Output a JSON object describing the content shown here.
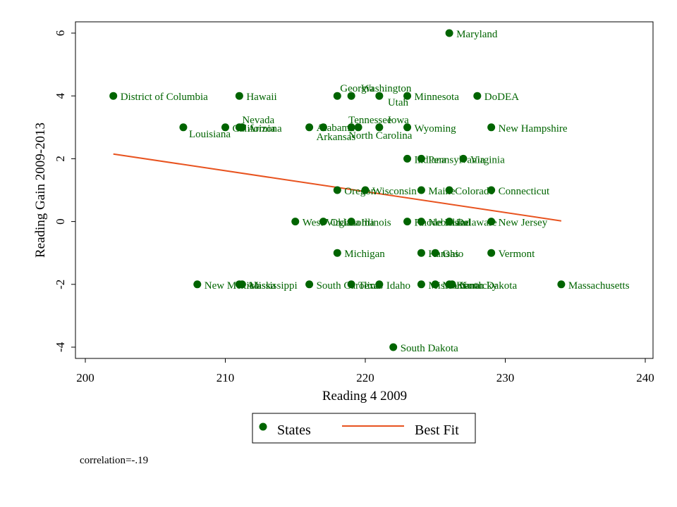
{
  "colors": {
    "point": "#006400",
    "fit": "#e8531f",
    "frame": "#000000"
  },
  "chart_data": {
    "type": "scatter",
    "xlabel": "Reading 4 2009",
    "ylabel": "Reading Gain 2009-2013",
    "xlim": [
      200,
      240
    ],
    "ylim": [
      -4,
      6
    ],
    "xticks": [
      "200",
      "210",
      "220",
      "230",
      "240"
    ],
    "yticks": [
      "-4",
      "-2",
      "0",
      "2",
      "4",
      "6"
    ],
    "legend": {
      "placement": "bottom",
      "points_label": "States",
      "fit_label": "Best Fit"
    },
    "note": "correlation=-.19",
    "fit_line": {
      "x": [
        202,
        234
      ],
      "y": [
        2.15,
        0.02
      ]
    },
    "points": [
      {
        "label": "Maryland",
        "x": 226,
        "y": 6
      },
      {
        "label": "District of Columbia",
        "x": 202,
        "y": 4
      },
      {
        "label": "Hawaii",
        "x": 211,
        "y": 4
      },
      {
        "label": "Georgia",
        "x": 218,
        "y": 4
      },
      {
        "label": "Washington",
        "x": 219,
        "y": 4
      },
      {
        "label": "Utah",
        "x": 221,
        "y": 4
      },
      {
        "label": "Minnesota",
        "x": 223,
        "y": 4
      },
      {
        "label": "DoDEA",
        "x": 228,
        "y": 4
      },
      {
        "label": "Louisiana",
        "x": 207,
        "y": 3
      },
      {
        "label": "California",
        "x": 210,
        "y": 3
      },
      {
        "label": "Nevada",
        "x": 211,
        "y": 3
      },
      {
        "label": "Arizona",
        "x": 211.2,
        "y": 3
      },
      {
        "label": "Alabama",
        "x": 216,
        "y": 3
      },
      {
        "label": "Arkansas",
        "x": 217,
        "y": 3
      },
      {
        "label": "Tennessee",
        "x": 219,
        "y": 3
      },
      {
        "label": "Iowa",
        "x": 221,
        "y": 3
      },
      {
        "label": "North Carolina",
        "x": 219.5,
        "y": 3
      },
      {
        "label": "Wyoming",
        "x": 223,
        "y": 3
      },
      {
        "label": "New Hampshire",
        "x": 229,
        "y": 3
      },
      {
        "label": "Indiana",
        "x": 223,
        "y": 2
      },
      {
        "label": "Pennsylvania",
        "x": 224,
        "y": 2
      },
      {
        "label": "Virginia",
        "x": 227,
        "y": 2
      },
      {
        "label": "Oregon",
        "x": 218,
        "y": 1
      },
      {
        "label": "Wisconsin",
        "x": 220,
        "y": 1
      },
      {
        "label": "Maine",
        "x": 224,
        "y": 1
      },
      {
        "label": "Colorado",
        "x": 226,
        "y": 1
      },
      {
        "label": "Connecticut",
        "x": 229,
        "y": 1
      },
      {
        "label": "West Virginia",
        "x": 215,
        "y": 0
      },
      {
        "label": "Oklahoma",
        "x": 217,
        "y": 0
      },
      {
        "label": "Illinois",
        "x": 219,
        "y": 0
      },
      {
        "label": "Rhode Island",
        "x": 223,
        "y": 0
      },
      {
        "label": "Nebraska",
        "x": 224,
        "y": 0
      },
      {
        "label": "Delaware",
        "x": 226,
        "y": 0
      },
      {
        "label": "New Jersey",
        "x": 229,
        "y": 0
      },
      {
        "label": "Michigan",
        "x": 218,
        "y": -1
      },
      {
        "label": "Kansas",
        "x": 224,
        "y": -1
      },
      {
        "label": "Ohio",
        "x": 225,
        "y": -1
      },
      {
        "label": "Vermont",
        "x": 229,
        "y": -1
      },
      {
        "label": "New Mexico",
        "x": 208,
        "y": -2
      },
      {
        "label": "Alaska",
        "x": 211,
        "y": -2
      },
      {
        "label": "Mississippi",
        "x": 211.2,
        "y": -2
      },
      {
        "label": "South Carolina",
        "x": 216,
        "y": -2
      },
      {
        "label": "Texas",
        "x": 219,
        "y": -2
      },
      {
        "label": "Idaho",
        "x": 221,
        "y": -2
      },
      {
        "label": "Missouri",
        "x": 224,
        "y": -2
      },
      {
        "label": "Montana",
        "x": 225,
        "y": -2
      },
      {
        "label": "Kentucky",
        "x": 226,
        "y": -2
      },
      {
        "label": "North Dakota",
        "x": 226.2,
        "y": -2
      },
      {
        "label": "Massachusetts",
        "x": 234,
        "y": -2
      },
      {
        "label": "South Dakota",
        "x": 222,
        "y": -4
      }
    ]
  }
}
